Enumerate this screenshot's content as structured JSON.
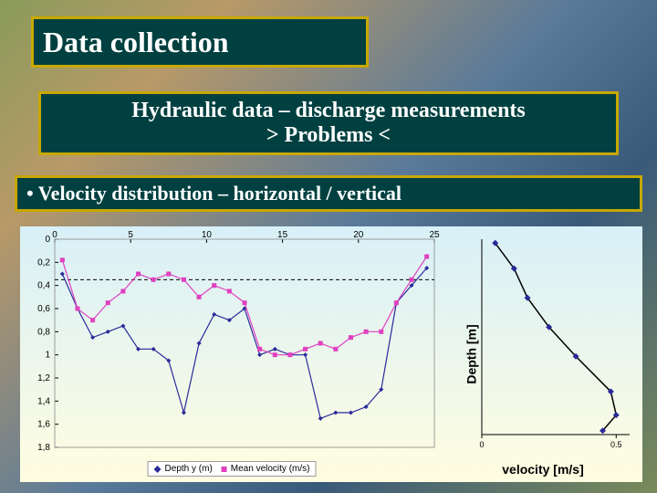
{
  "title": "Data collection",
  "subtitle_line1": "Hydraulic data – discharge measurements",
  "subtitle_line2": "> Problems <",
  "bullet": "• Velocity distribution – horizontal / vertical",
  "box_border": "#c8a800",
  "box_fill": "#004040",
  "box_text_color": "#ffffff",
  "left_chart": {
    "type": "line",
    "x_ticks": [
      0,
      5,
      10,
      15,
      20,
      25
    ],
    "y_ticks": [
      0,
      0.2,
      0.4,
      0.6,
      0.8,
      1,
      1.2,
      1.4,
      1.6,
      1.8
    ],
    "tick_fontsize": 10,
    "tick_color": "#000000",
    "grid": false,
    "hline_y": 0.35,
    "hline_color": "#000000",
    "hline_dash": "4,3",
    "series": [
      {
        "name": "Depth y (m)",
        "color": "#2a2a9a",
        "marker": "diamond",
        "marker_size": 5,
        "line_width": 1.2,
        "x": [
          0.5,
          1.5,
          2.5,
          3.5,
          4.5,
          5.5,
          6.5,
          7.5,
          8.5,
          9.5,
          10.5,
          11.5,
          12.5,
          13.5,
          14.5,
          15.5,
          16.5,
          17.5,
          18.5,
          19.5,
          20.5,
          21.5,
          22.5,
          23.5,
          24.5
        ],
        "y": [
          0.3,
          0.6,
          0.85,
          0.8,
          0.75,
          0.95,
          0.95,
          1.05,
          1.5,
          0.9,
          0.65,
          0.7,
          0.6,
          1.0,
          0.95,
          1.0,
          1.0,
          1.55,
          1.5,
          1.5,
          1.45,
          1.3,
          0.55,
          0.4,
          0.25
        ]
      },
      {
        "name": "Mean velocity (m/s)",
        "color": "#e040c0",
        "marker": "square",
        "marker_size": 5,
        "line_width": 1.2,
        "x": [
          0.5,
          1.5,
          2.5,
          3.5,
          4.5,
          5.5,
          6.5,
          7.5,
          8.5,
          9.5,
          10.5,
          11.5,
          12.5,
          13.5,
          14.5,
          15.5,
          16.5,
          17.5,
          18.5,
          19.5,
          20.5,
          21.5,
          22.5,
          23.5,
          24.5
        ],
        "y": [
          0.18,
          0.6,
          0.7,
          0.55,
          0.45,
          0.3,
          0.35,
          0.3,
          0.35,
          0.5,
          0.4,
          0.45,
          0.55,
          0.95,
          1.0,
          1.0,
          0.95,
          0.9,
          0.95,
          0.85,
          0.8,
          0.8,
          0.55,
          0.35,
          0.15
        ]
      }
    ]
  },
  "right_chart": {
    "type": "line",
    "xlabel": "velocity [m/s]",
    "ylabel": "Depth [m]",
    "label_fontsize": 14,
    "x_ticks": [
      0,
      0.5
    ],
    "y_ticks": [],
    "series": {
      "color": "#000000",
      "marker": "diamond",
      "marker_color": "#2a2a9a",
      "marker_size": 7,
      "line_width": 1.5,
      "x": [
        0.05,
        0.12,
        0.17,
        0.25,
        0.35,
        0.48,
        0.5,
        0.45
      ],
      "y": [
        0.02,
        0.15,
        0.3,
        0.45,
        0.6,
        0.78,
        0.9,
        0.98
      ]
    }
  }
}
